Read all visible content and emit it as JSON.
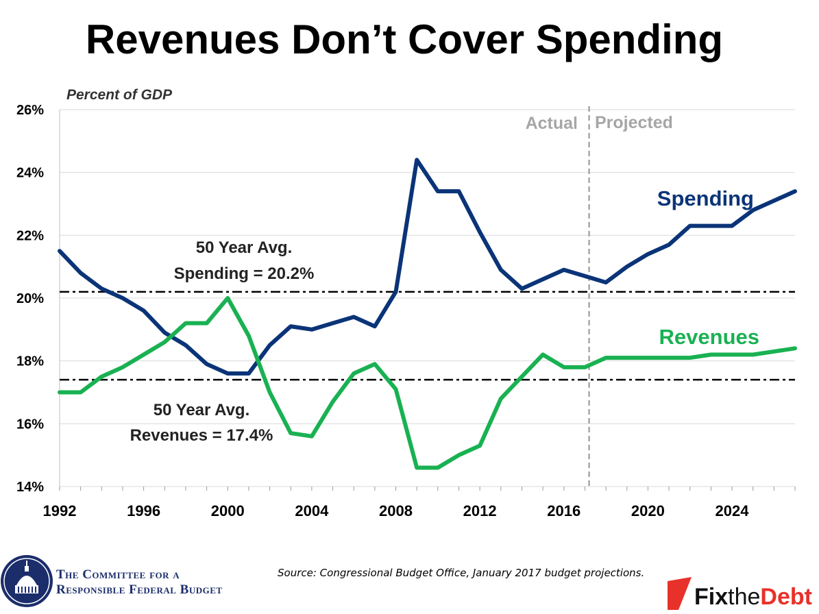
{
  "title": "Revenues Don’t Cover Spending",
  "source": "Source: Congressional Budget Office, January 2017 budget projections.",
  "colors": {
    "spending": "#0b3478",
    "revenues": "#19b152",
    "grid": "#d9d9d9",
    "divider": "#a6a6a6",
    "avg_line": "#000000",
    "ftd_red": "#e8312a",
    "crfb_blue": "#1b2d6b"
  },
  "logos": {
    "crfb": {
      "icon": "capitol-dome-seal-icon",
      "line1": "The Committee for a",
      "line2": "Responsible Federal Budget"
    },
    "fix_the_debt": {
      "icon": "red-arrow-mark-icon",
      "fix": "Fix",
      "the": "the",
      "debt": "Debt"
    }
  },
  "chart_data": {
    "type": "line",
    "title": "Revenues Don’t Cover Spending",
    "ylabel": "Percent of GDP",
    "xlabel": "",
    "ylim": [
      14,
      26
    ],
    "xlim": [
      1992,
      2027
    ],
    "y_ticks": [
      26,
      24,
      22,
      20,
      18,
      16,
      14
    ],
    "y_tick_labels": [
      "26%",
      "24%",
      "22%",
      "20%",
      "18%",
      "16%",
      "14%"
    ],
    "x_ticks": [
      1992,
      1996,
      2000,
      2004,
      2008,
      2012,
      2016,
      2020,
      2024
    ],
    "x_tick_labels": [
      "1992",
      "1996",
      "2000",
      "2004",
      "2008",
      "2012",
      "2016",
      "2020",
      "2024"
    ],
    "grid": true,
    "x": [
      1992,
      1993,
      1994,
      1995,
      1996,
      1997,
      1998,
      1999,
      2000,
      2001,
      2002,
      2003,
      2004,
      2005,
      2006,
      2007,
      2008,
      2009,
      2010,
      2011,
      2012,
      2013,
      2014,
      2015,
      2016,
      2017,
      2018,
      2019,
      2020,
      2021,
      2022,
      2023,
      2024,
      2025,
      2026,
      2027
    ],
    "series": [
      {
        "name": "Spending",
        "color": "#0b3478",
        "label_position": "upper-right",
        "values": [
          21.5,
          20.8,
          20.3,
          20.0,
          19.6,
          18.9,
          18.5,
          17.9,
          17.6,
          17.6,
          18.5,
          19.1,
          19.0,
          19.2,
          19.4,
          19.1,
          20.2,
          24.4,
          23.4,
          23.4,
          22.1,
          20.9,
          20.3,
          20.6,
          20.9,
          20.7,
          20.5,
          21.0,
          21.4,
          21.7,
          22.3,
          22.3,
          22.3,
          22.8,
          23.1,
          23.4
        ]
      },
      {
        "name": "Revenues",
        "color": "#19b152",
        "label_position": "right",
        "values": [
          17.0,
          17.0,
          17.5,
          17.8,
          18.2,
          18.6,
          19.2,
          19.2,
          20.0,
          18.8,
          17.0,
          15.7,
          15.6,
          16.7,
          17.6,
          17.9,
          17.1,
          14.6,
          14.6,
          15.0,
          15.3,
          16.8,
          17.5,
          18.2,
          17.8,
          17.8,
          18.1,
          18.1,
          18.1,
          18.1,
          18.1,
          18.2,
          18.2,
          18.2,
          18.3,
          18.4
        ]
      }
    ],
    "reference_lines": [
      {
        "label_line1": "50 Year Avg.",
        "label_line2": "Spending = 20.2%",
        "value": 20.2,
        "style": "dashed"
      },
      {
        "label_line1": "50 Year Avg.",
        "label_line2": "Revenues = 17.4%",
        "value": 17.4,
        "style": "dashed"
      }
    ],
    "period_divider": {
      "x": 2017.2,
      "left_label": "Actual",
      "right_label": "Projected",
      "style": "dashed"
    }
  }
}
